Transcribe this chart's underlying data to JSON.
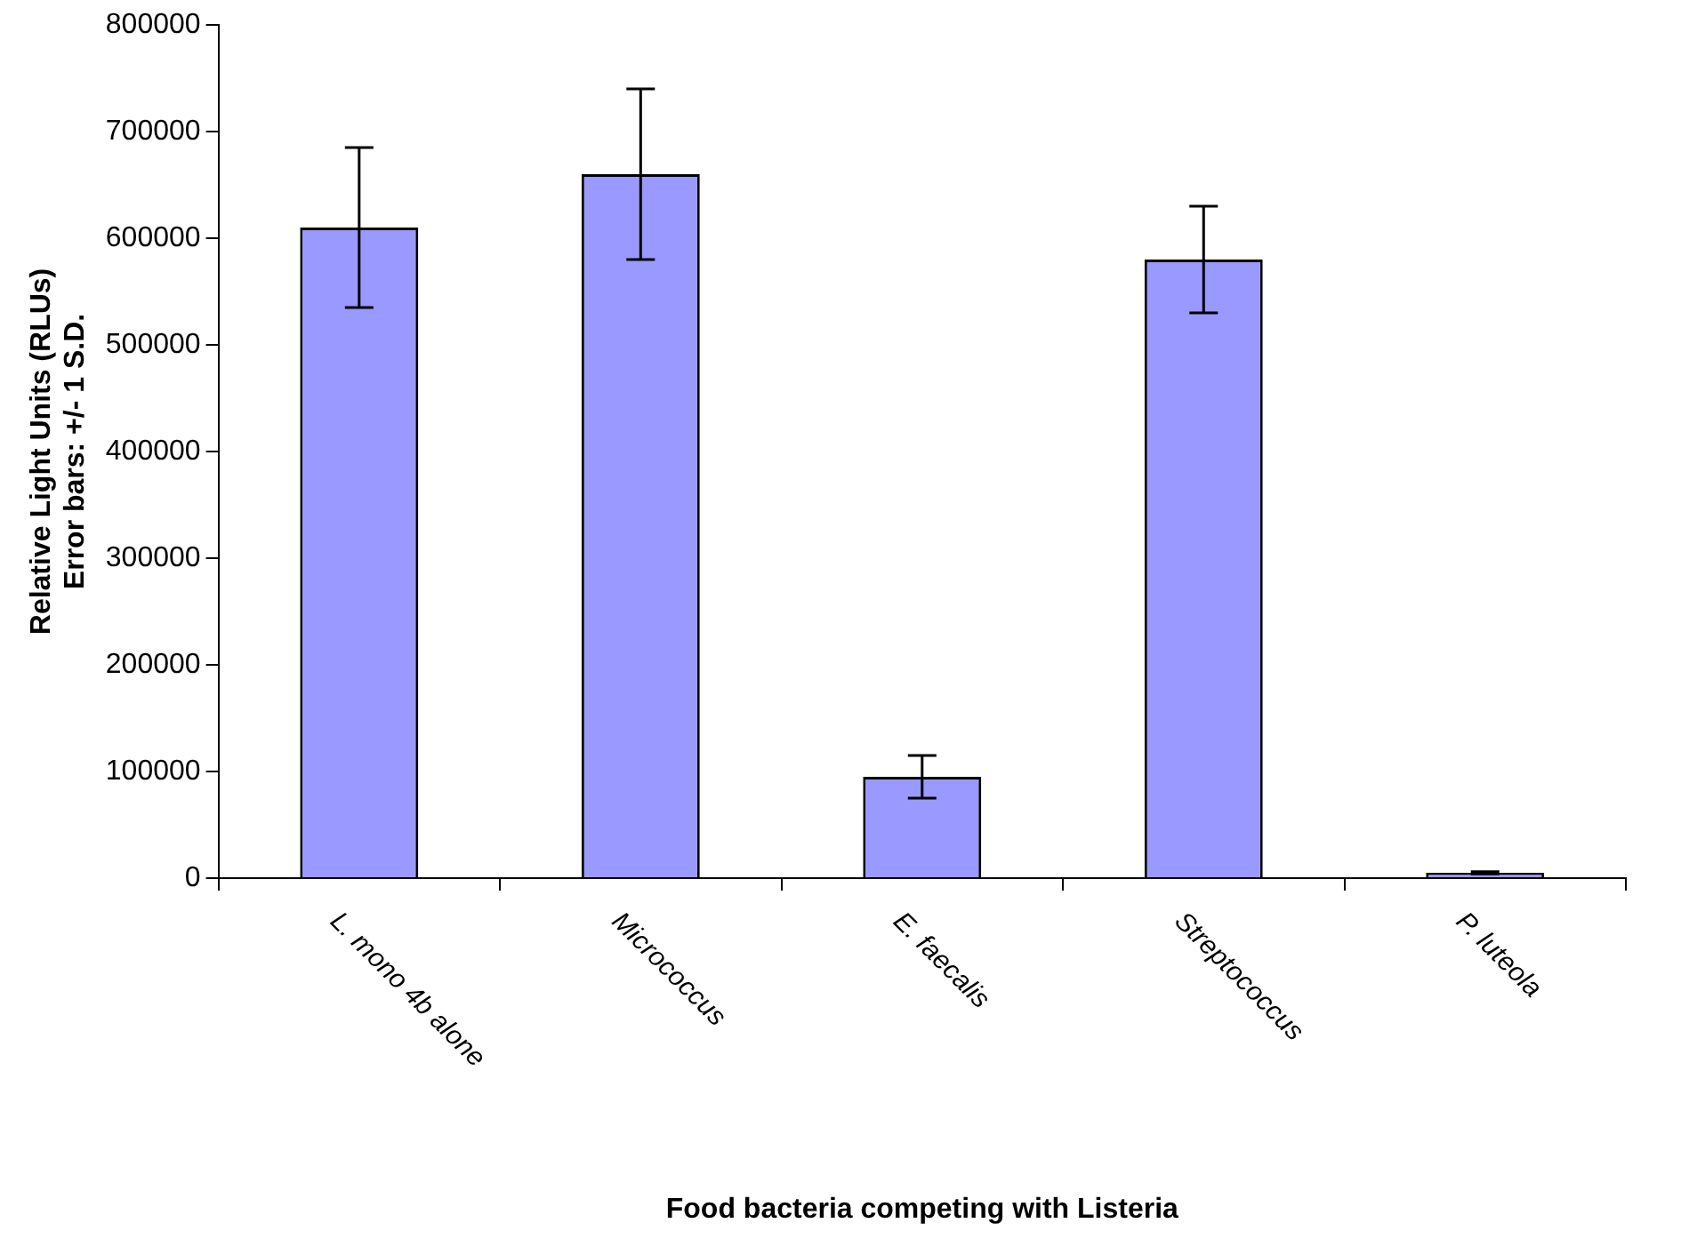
{
  "chart_data": {
    "type": "bar",
    "xlabel": "Food bacteria competing with Listeria",
    "ylabel": "Relative Light Units (RLUs)\nError bars: +/- 1 S.D.",
    "categories": [
      "L. mono 4b alone",
      "Micrococcus",
      "E. faecalis",
      "Streptococcus",
      "P. luteola"
    ],
    "values": [
      610000,
      660000,
      95000,
      580000,
      5000
    ],
    "errors": [
      75000,
      80000,
      20000,
      50000,
      1000
    ],
    "color": "#9999ff",
    "ylim": [
      0,
      800000
    ],
    "yticks": [
      0,
      100000,
      200000,
      300000,
      400000,
      500000,
      600000,
      700000,
      800000
    ],
    "grid": false,
    "legend": false
  }
}
